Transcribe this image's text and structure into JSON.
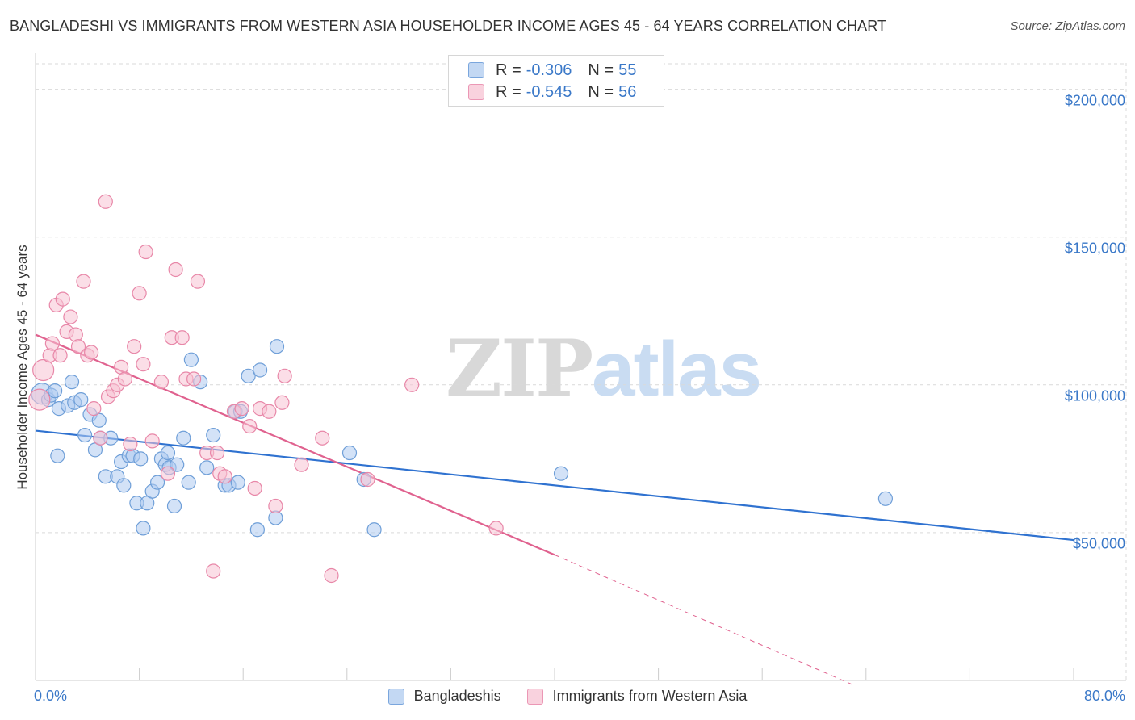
{
  "title": "BANGLADESHI VS IMMIGRANTS FROM WESTERN ASIA HOUSEHOLDER INCOME AGES 45 - 64 YEARS CORRELATION CHART",
  "source": "Source: ZipAtlas.com",
  "watermark": {
    "zip": "ZIP",
    "atlas": "atlas"
  },
  "legend": {
    "rows": [
      {
        "r_label": "R =",
        "r_value": "-0.306",
        "n_label": "N =",
        "n_value": "55"
      },
      {
        "r_label": "R =",
        "r_value": "-0.545",
        "n_label": "N =",
        "n_value": "56"
      }
    ]
  },
  "colors": {
    "blue_fill": "#aecbf0",
    "blue_stroke": "#6f9fd8",
    "blue_line": "#2f72d0",
    "pink_fill": "#f7c3d3",
    "pink_stroke": "#e887a8",
    "pink_line": "#e0628f",
    "grid": "#d9d9d9",
    "axis_text": "#3a78c8"
  },
  "chart_data": {
    "type": "scatter",
    "title": "BANGLADESHI VS IMMIGRANTS FROM WESTERN ASIA HOUSEHOLDER INCOME AGES 45 - 64 YEARS CORRELATION CHART",
    "xlabel": "",
    "ylabel": "Householder Income Ages 45 - 64 years",
    "xlim": [
      0,
      80
    ],
    "ylim": [
      0,
      210000
    ],
    "x_tick_labels": [
      "0.0%",
      "80.0%"
    ],
    "y_ticks": [
      50000,
      100000,
      150000,
      200000
    ],
    "y_tick_labels": [
      "$50,000",
      "$100,000",
      "$150,000",
      "$200,000"
    ],
    "grid": true,
    "legend_position": "top-center",
    "series": [
      {
        "name": "Bangladeshis",
        "color": "#6f9fd8",
        "r": -0.306,
        "n": 55,
        "trend": {
          "x": [
            0,
            80
          ],
          "y": [
            84500,
            47500
          ]
        },
        "points": [
          [
            0.5,
            97000
          ],
          [
            1.0,
            95000
          ],
          [
            1.2,
            96500
          ],
          [
            1.5,
            98000
          ],
          [
            1.8,
            92000
          ],
          [
            2.5,
            93000
          ],
          [
            2.8,
            101000
          ],
          [
            3.0,
            94000
          ],
          [
            3.5,
            95000
          ],
          [
            1.7,
            76000
          ],
          [
            3.8,
            83000
          ],
          [
            4.2,
            90000
          ],
          [
            4.6,
            78000
          ],
          [
            4.9,
            88000
          ],
          [
            5.0,
            82000
          ],
          [
            5.4,
            69000
          ],
          [
            5.8,
            82000
          ],
          [
            6.3,
            69000
          ],
          [
            6.6,
            74000
          ],
          [
            6.8,
            66000
          ],
          [
            7.2,
            76000
          ],
          [
            7.5,
            76000
          ],
          [
            7.8,
            60000
          ],
          [
            8.1,
            75000
          ],
          [
            8.3,
            51500
          ],
          [
            8.6,
            60000
          ],
          [
            9.0,
            64000
          ],
          [
            9.4,
            67000
          ],
          [
            9.7,
            75000
          ],
          [
            10.0,
            73000
          ],
          [
            10.3,
            72000
          ],
          [
            10.7,
            59000
          ],
          [
            10.9,
            73000
          ],
          [
            11.4,
            82000
          ],
          [
            11.8,
            67000
          ],
          [
            12.0,
            108500
          ],
          [
            12.7,
            101000
          ],
          [
            13.2,
            72000
          ],
          [
            13.7,
            83000
          ],
          [
            14.6,
            66000
          ],
          [
            14.9,
            66000
          ],
          [
            15.4,
            91000
          ],
          [
            15.8,
            91000
          ],
          [
            15.6,
            67000
          ],
          [
            16.4,
            103000
          ],
          [
            17.1,
            51000
          ],
          [
            17.3,
            105000
          ],
          [
            18.5,
            55000
          ],
          [
            18.6,
            113000
          ],
          [
            24.2,
            77000
          ],
          [
            25.3,
            68000
          ],
          [
            26.1,
            51000
          ],
          [
            40.5,
            70000
          ],
          [
            65.5,
            61500
          ],
          [
            10.2,
            77000
          ]
        ]
      },
      {
        "name": "Immigrants from Western Asia",
        "color": "#e887a8",
        "r": -0.545,
        "n": 56,
        "trend": {
          "x": [
            0,
            40
          ],
          "y": [
            117000,
            42500
          ]
        },
        "trend_dashed": {
          "x": [
            40,
            63
          ],
          "y": [
            42500,
            -1500
          ]
        },
        "points": [
          [
            0.3,
            95000
          ],
          [
            0.6,
            105000
          ],
          [
            1.1,
            110000
          ],
          [
            1.3,
            114000
          ],
          [
            1.6,
            127000
          ],
          [
            1.9,
            110000
          ],
          [
            2.1,
            129000
          ],
          [
            2.4,
            118000
          ],
          [
            2.7,
            123000
          ],
          [
            3.1,
            117000
          ],
          [
            3.3,
            113000
          ],
          [
            3.7,
            135000
          ],
          [
            4.0,
            110000
          ],
          [
            4.3,
            111000
          ],
          [
            4.5,
            92000
          ],
          [
            5.0,
            82000
          ],
          [
            5.6,
            96000
          ],
          [
            6.0,
            98000
          ],
          [
            6.3,
            100000
          ],
          [
            6.6,
            106000
          ],
          [
            6.9,
            102000
          ],
          [
            7.3,
            80000
          ],
          [
            7.6,
            113000
          ],
          [
            8.0,
            131000
          ],
          [
            8.3,
            107000
          ],
          [
            8.5,
            145000
          ],
          [
            9.0,
            81000
          ],
          [
            9.7,
            101000
          ],
          [
            10.2,
            70000
          ],
          [
            10.8,
            139000
          ],
          [
            10.5,
            116000
          ],
          [
            11.3,
            116000
          ],
          [
            11.6,
            102000
          ],
          [
            12.2,
            102000
          ],
          [
            12.5,
            135000
          ],
          [
            13.2,
            77000
          ],
          [
            13.7,
            37000
          ],
          [
            14.0,
            77000
          ],
          [
            14.2,
            70000
          ],
          [
            14.6,
            69000
          ],
          [
            15.3,
            91000
          ],
          [
            15.9,
            92000
          ],
          [
            16.5,
            86000
          ],
          [
            16.9,
            65000
          ],
          [
            17.3,
            92000
          ],
          [
            18.0,
            91000
          ],
          [
            18.5,
            59000
          ],
          [
            19.0,
            94000
          ],
          [
            19.2,
            103000
          ],
          [
            20.5,
            73000
          ],
          [
            22.1,
            82000
          ],
          [
            22.8,
            35500
          ],
          [
            25.6,
            68000
          ],
          [
            29.0,
            100000
          ],
          [
            35.5,
            51500
          ],
          [
            5.4,
            162000
          ]
        ]
      }
    ]
  }
}
